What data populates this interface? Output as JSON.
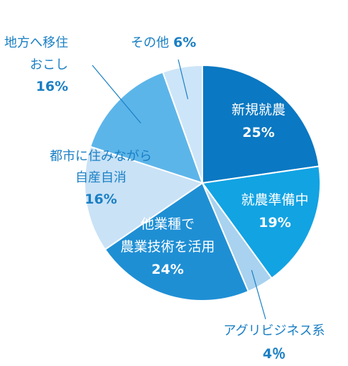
{
  "chart_data": {
    "type": "pie",
    "title": "",
    "start": "12 o'clock",
    "direction": "clockwise",
    "slices": [
      {
        "name_lines": [
          "新規就農"
        ],
        "pct_text": "25%",
        "value": 25,
        "color": "#0a78c2",
        "label_color": "#ffffff"
      },
      {
        "name_lines": [
          "就農準備中"
        ],
        "pct_text": "19%",
        "value": 19,
        "color": "#12a3e3",
        "label_color": "#ffffff"
      },
      {
        "name_lines": [
          "アグリビジネス系"
        ],
        "pct_text": "4％",
        "value": 4,
        "color": "#a8d2ef",
        "label_color": "#1a7fc4"
      },
      {
        "name_lines": [
          "他業種で",
          "農業技術を活用"
        ],
        "pct_text": "24%",
        "value": 24,
        "color": "#1f8fd4",
        "label_color": "#ffffff"
      },
      {
        "name_lines": [
          "都市に住みながら",
          "自産自消"
        ],
        "pct_text": "16%",
        "value": 16,
        "color": "#c9e2f6",
        "label_color": "#1a7fc4"
      },
      {
        "name_lines": [
          "地方へ移住",
          "おこし"
        ],
        "pct_text": "16%",
        "value": 16,
        "color": "#5cb5e9",
        "label_color": "#1a7fc4"
      },
      {
        "name_lines": [
          "その他"
        ],
        "pct_text": "6%",
        "value": 6,
        "color": "#cde5f8",
        "label_color": "#1a7fc4"
      }
    ]
  }
}
